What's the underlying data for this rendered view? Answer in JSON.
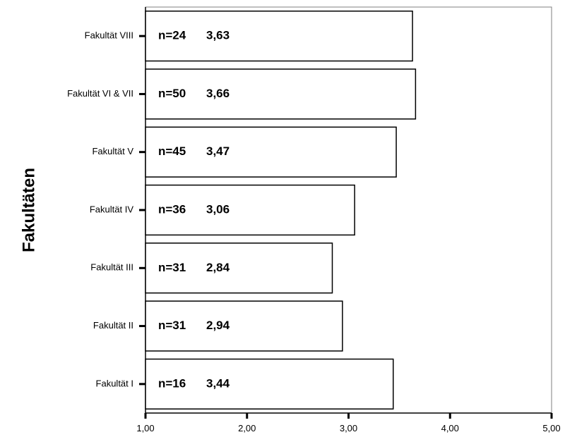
{
  "chart_data": {
    "type": "bar",
    "orientation": "horizontal",
    "ylabel": "Fakultäten",
    "xlabel": "",
    "xlim": [
      1,
      5
    ],
    "x_ticks": [
      "1,00",
      "2,00",
      "3,00",
      "4,00",
      "5,00"
    ],
    "x_tick_values": [
      1,
      2,
      3,
      4,
      5
    ],
    "grid": false,
    "bar_fill": "#ffffff",
    "bar_stroke": "#000000",
    "categories": [
      "Fakultät VIII",
      "Fakultät VI & VII",
      "Fakultät V",
      "Fakultät IV",
      "Fakultät III",
      "Fakultät II",
      "Fakultät I"
    ],
    "values": [
      3.63,
      3.66,
      3.47,
      3.06,
      2.84,
      2.94,
      3.44
    ],
    "n": [
      24,
      50,
      45,
      36,
      31,
      31,
      16
    ],
    "bar_labels": [
      "n=24",
      "n=50",
      "n=45",
      "n=36",
      "n=31",
      "n=31",
      "n=16"
    ],
    "value_labels": [
      "3,63",
      "3,66",
      "3,47",
      "3,06",
      "2,84",
      "2,94",
      "3,44"
    ]
  }
}
